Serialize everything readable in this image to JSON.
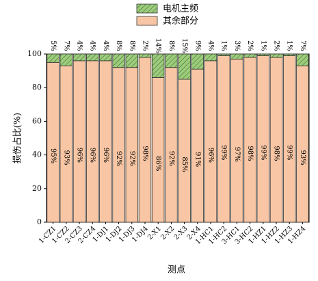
{
  "chart_data": {
    "type": "stacked_bar",
    "xlabel": "测点",
    "ylabel": "损伤占比(%)",
    "categories": [
      "1-CZ1",
      "1-CZ2",
      "2-CZ3",
      "2-CZ4",
      "1-DJ1",
      "1-DJ2",
      "1-DJ3",
      "1-DJ4",
      "2-X1",
      "2-X2",
      "2-X3",
      "2-X4",
      "1-HC1",
      "1-HC2",
      "3-HC1",
      "3-HC2",
      "1-HZ1",
      "1-HZ2",
      "1-HZ3",
      "1-HZ4"
    ],
    "series": [
      {
        "name": "其余部分",
        "color": "#f8c6a4",
        "values": [
          95,
          93,
          96,
          96,
          96,
          92,
          92,
          98,
          86,
          92,
          85,
          91,
          96,
          99,
          97,
          98,
          99,
          98,
          99,
          93
        ],
        "value_labels": [
          "95%",
          "93%",
          "96%",
          "96%",
          "96%",
          "92%",
          "92%",
          "98%",
          "86%",
          "92%",
          "85%",
          "91%",
          "96%",
          "99%",
          "97%",
          "98%",
          "99%",
          "98%",
          "99%",
          "93%"
        ]
      },
      {
        "name": "电机主频",
        "color": "#9ccc7c",
        "values": [
          5,
          7,
          4,
          4,
          4,
          8,
          8,
          2,
          14,
          8,
          15,
          9,
          4,
          1,
          3,
          2,
          1,
          2,
          1,
          7
        ],
        "value_labels": [
          "5%",
          "7%",
          "4%",
          "4%",
          "4%",
          "8%",
          "8%",
          "2%",
          "14%",
          "8%",
          "15%",
          "9%",
          "4%",
          "1%",
          "3%",
          "2%",
          "1%",
          "2%",
          "1%",
          "7%"
        ]
      }
    ],
    "ylim": [
      0,
      100
    ],
    "yticks": [
      0,
      20,
      40,
      60,
      80,
      100
    ],
    "hatch_top": true
  }
}
